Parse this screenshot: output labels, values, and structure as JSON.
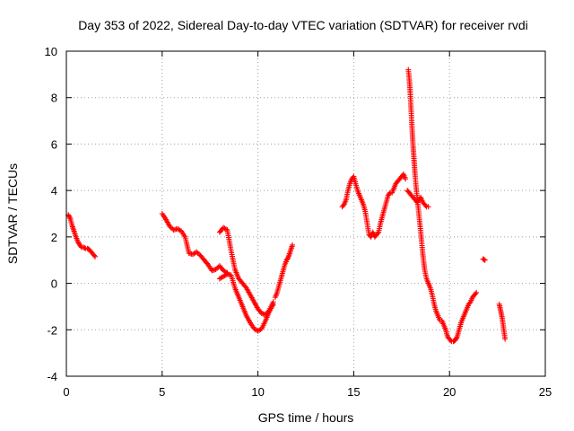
{
  "chart_data": {
    "type": "scatter",
    "title": "Day 353 of 2022, Sidereal Day-to-day VTEC variation (SDTVAR) for receiver rvdi",
    "xlabel": "GPS time / hours",
    "ylabel": "SDTVAR / TECUs",
    "xlim": [
      0,
      25
    ],
    "ylim": [
      -4,
      10
    ],
    "xticks": [
      0,
      5,
      10,
      15,
      20,
      25
    ],
    "yticks": [
      -4,
      -2,
      0,
      2,
      4,
      6,
      8,
      10
    ],
    "grid": true,
    "marker": "+",
    "color": "#ff0000",
    "series": [
      {
        "name": "seg1",
        "x": [
          0.1,
          0.2,
          0.3,
          0.4,
          0.5,
          0.6,
          0.7,
          0.8,
          0.9,
          1.0,
          1.1,
          1.2,
          1.3,
          1.4,
          1.5
        ],
        "y": [
          2.95,
          2.8,
          2.5,
          2.25,
          2.0,
          1.8,
          1.65,
          1.55,
          1.55,
          1.5,
          1.5,
          1.45,
          1.35,
          1.25,
          1.15
        ]
      },
      {
        "name": "seg2",
        "x": [
          5.0,
          5.2,
          5.4,
          5.6,
          5.8,
          6.0,
          6.2,
          6.4,
          6.6,
          6.8,
          7.0,
          7.2,
          7.4,
          7.6,
          7.8,
          8.0,
          8.2,
          8.4
        ],
        "y": [
          3.0,
          2.75,
          2.45,
          2.3,
          2.35,
          2.25,
          2.0,
          1.3,
          1.25,
          1.35,
          1.2,
          1.0,
          0.8,
          0.55,
          0.6,
          0.75,
          0.55,
          0.45
        ]
      },
      {
        "name": "seg3",
        "x": [
          8.0,
          8.2,
          8.4,
          8.6,
          8.8,
          9.0,
          9.2,
          9.4,
          9.6,
          9.8,
          10.0,
          10.2,
          10.4,
          10.6,
          10.8
        ],
        "y": [
          0.2,
          0.3,
          0.4,
          0.35,
          -0.2,
          -0.6,
          -1.0,
          -1.4,
          -1.7,
          -1.95,
          -2.05,
          -1.95,
          -1.6,
          -1.2,
          -0.9
        ]
      },
      {
        "name": "seg4",
        "x": [
          8.0,
          8.2,
          8.4,
          8.6,
          8.8,
          9.0,
          9.2,
          9.4,
          9.6,
          9.8,
          10.0,
          10.2,
          10.4,
          10.6,
          10.8
        ],
        "y": [
          2.2,
          2.4,
          2.3,
          1.4,
          0.6,
          0.2,
          0.0,
          -0.2,
          -0.5,
          -0.8,
          -1.1,
          -1.3,
          -1.35,
          -1.15,
          -0.8
        ]
      },
      {
        "name": "seg5",
        "x": [
          10.9,
          11.0,
          11.1,
          11.2,
          11.3,
          11.4,
          11.5,
          11.6,
          11.7,
          11.8
        ],
        "y": [
          -0.6,
          -0.4,
          -0.1,
          0.2,
          0.5,
          0.8,
          1.0,
          1.15,
          1.4,
          1.65
        ]
      },
      {
        "name": "seg6",
        "x": [
          14.4,
          14.5,
          14.6,
          14.7,
          14.8,
          14.9,
          15.0,
          15.1,
          15.2,
          15.3,
          15.4,
          15.5,
          15.6,
          15.7,
          15.8,
          15.9,
          16.0,
          16.1,
          16.2,
          16.3,
          16.4,
          16.5,
          16.6,
          16.7,
          16.8,
          16.9,
          17.0,
          17.1,
          17.2,
          17.3,
          17.4,
          17.5,
          17.6,
          17.7
        ],
        "y": [
          3.3,
          3.4,
          3.6,
          4.0,
          4.3,
          4.5,
          4.6,
          4.3,
          4.0,
          3.8,
          3.6,
          3.4,
          3.1,
          2.6,
          2.1,
          2.0,
          2.2,
          2.0,
          2.1,
          2.2,
          2.6,
          2.9,
          3.2,
          3.5,
          3.8,
          3.9,
          3.9,
          4.1,
          4.3,
          4.4,
          4.5,
          4.6,
          4.7,
          4.5
        ]
      },
      {
        "name": "seg7",
        "x": [
          17.8,
          17.9,
          18.0,
          18.1,
          18.2,
          18.3,
          18.4,
          18.5,
          18.6,
          18.7,
          18.8,
          18.9
        ],
        "y": [
          4.0,
          3.9,
          3.8,
          3.7,
          3.6,
          3.5,
          3.6,
          3.7,
          3.5,
          3.4,
          3.3,
          3.3
        ]
      },
      {
        "name": "seg8",
        "x": [
          17.85,
          17.9,
          17.95,
          18.0,
          18.05,
          18.1,
          18.15,
          18.2,
          18.25,
          18.3,
          18.4,
          18.5,
          18.6,
          18.7,
          18.8,
          18.9,
          19.0,
          19.1,
          19.2,
          19.3,
          19.4,
          19.5,
          19.6,
          19.7,
          19.8,
          19.9,
          20.0,
          20.1,
          20.2,
          20.3,
          20.4,
          20.5,
          20.6,
          20.7,
          20.8,
          20.9,
          21.0,
          21.1,
          21.2,
          21.3,
          21.4
        ],
        "y": [
          9.2,
          8.8,
          8.2,
          7.4,
          6.6,
          5.9,
          5.3,
          4.7,
          4.2,
          3.8,
          3.0,
          2.2,
          1.3,
          0.6,
          0.2,
          0.0,
          -0.2,
          -0.5,
          -0.9,
          -1.2,
          -1.4,
          -1.6,
          -1.6,
          -1.8,
          -2.0,
          -2.3,
          -2.4,
          -2.5,
          -2.5,
          -2.45,
          -2.3,
          -2.0,
          -1.7,
          -1.5,
          -1.3,
          -1.1,
          -0.9,
          -0.8,
          -0.6,
          -0.5,
          -0.4
        ]
      },
      {
        "name": "seg9",
        "x": [
          21.75,
          21.85
        ],
        "y": [
          1.05,
          1.0
        ]
      },
      {
        "name": "seg10",
        "x": [
          22.6,
          22.65,
          22.7,
          22.75,
          22.8,
          22.85,
          22.9
        ],
        "y": [
          -0.9,
          -1.1,
          -1.3,
          -1.5,
          -1.8,
          -2.1,
          -2.4
        ]
      }
    ]
  }
}
